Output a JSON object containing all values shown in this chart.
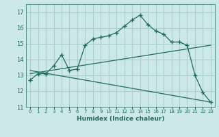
{
  "xlabel": "Humidex (Indice chaleur)",
  "background_color": "#cde8e8",
  "grid_color": "#aacfcf",
  "line_color": "#1a6b5a",
  "xlim": [
    -0.5,
    23.5
  ],
  "ylim": [
    11,
    17.5
  ],
  "yticks": [
    11,
    12,
    13,
    14,
    15,
    16,
    17
  ],
  "xticks": [
    0,
    1,
    2,
    3,
    4,
    5,
    6,
    7,
    8,
    9,
    10,
    11,
    12,
    13,
    14,
    15,
    16,
    17,
    18,
    19,
    20,
    21,
    22,
    23
  ],
  "line1_x": [
    0,
    1,
    2,
    3,
    4,
    5,
    6,
    7,
    8,
    9,
    10,
    11,
    12,
    13,
    14,
    15,
    16,
    17,
    18,
    19,
    20,
    21,
    22,
    23
  ],
  "line1_y": [
    12.7,
    13.1,
    13.1,
    13.6,
    14.3,
    13.3,
    13.4,
    14.9,
    15.3,
    15.4,
    15.5,
    15.7,
    16.1,
    16.5,
    16.8,
    16.2,
    15.8,
    15.6,
    15.1,
    15.1,
    14.9,
    13.0,
    11.9,
    11.3
  ],
  "line2_x": [
    0,
    23
  ],
  "line2_y": [
    13.1,
    14.9
  ],
  "line3_x": [
    0,
    23
  ],
  "line3_y": [
    13.3,
    11.3
  ]
}
